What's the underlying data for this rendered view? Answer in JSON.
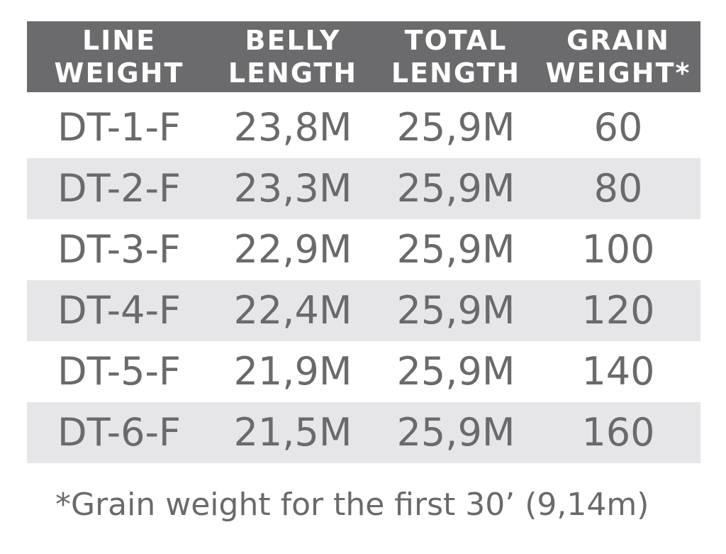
{
  "table": {
    "header": [
      [
        "LINE",
        "WEIGHT"
      ],
      [
        "BELLY",
        "LENGTH"
      ],
      [
        "TOTAL",
        "LENGTH"
      ],
      [
        "GRAIN",
        "WEIGHT*"
      ]
    ],
    "rows": [
      [
        "DT-1-F",
        "23,8M",
        "25,9M",
        "60"
      ],
      [
        "DT-2-F",
        "23,3M",
        "25,9M",
        "80"
      ],
      [
        "DT-3-F",
        "22,9M",
        "25,9M",
        "100"
      ],
      [
        "DT-4-F",
        "22,4M",
        "25,9M",
        "120"
      ],
      [
        "DT-5-F",
        "21,9M",
        "25,9M",
        "140"
      ],
      [
        "DT-6-F",
        "21,5M",
        "25,9M",
        "160"
      ]
    ],
    "footnote": "*Grain weight for the first 30’ (9,14m)"
  }
}
